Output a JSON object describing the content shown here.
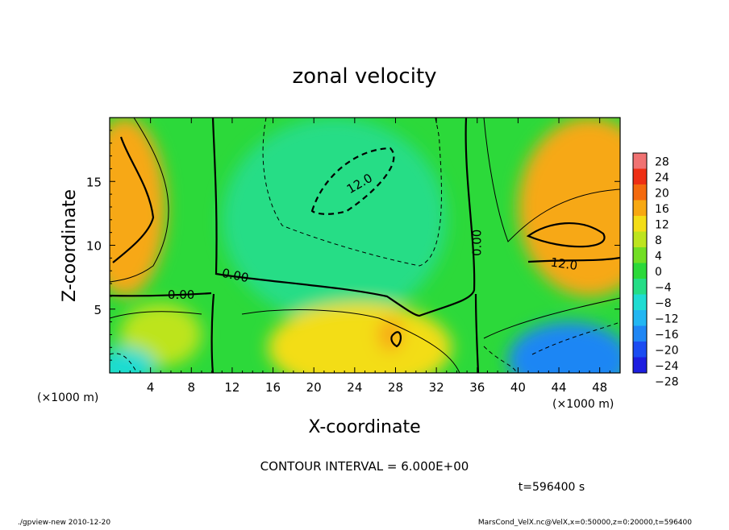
{
  "chart_data": {
    "type": "heatmap",
    "title": "zonal velocity",
    "xlabel": "X-coordinate",
    "ylabel": "Z-coordinate",
    "x_unit": "(×1000 m)",
    "y_unit": "(×1000 m)",
    "xlim": [
      0,
      50
    ],
    "ylim": [
      0,
      20
    ],
    "x_ticks": [
      4,
      8,
      12,
      16,
      20,
      24,
      28,
      32,
      36,
      40,
      44,
      48
    ],
    "y_ticks": [
      5,
      10,
      15
    ],
    "contour_interval_text": "CONTOUR INTERVAL = 6.000E+00",
    "time_text": "t=596400 s",
    "colorbar": {
      "levels": [
        28,
        24,
        20,
        16,
        12,
        8,
        4,
        0,
        -4,
        -8,
        -12,
        -16,
        -20,
        -24,
        -28
      ],
      "label_text": [
        "28",
        "24",
        "20",
        "16",
        "12",
        "8",
        "4",
        "0",
        "−4",
        "−8",
        "−12",
        "−16",
        "−20",
        "−24",
        "−28"
      ]
    },
    "contour_labels": [
      {
        "text": "12.0",
        "x": 24.5,
        "z": 14.8,
        "angle": -30
      },
      {
        "text": "0.00",
        "x": 36.0,
        "z": 10.2,
        "angle": -90
      },
      {
        "text": "12.0",
        "x": 44.5,
        "z": 8.5,
        "angle": 8
      },
      {
        "text": "0.00",
        "x": 12.3,
        "z": 7.6,
        "angle": 12
      },
      {
        "text": "0.00",
        "x": 7.0,
        "z": 6.1,
        "angle": 0
      }
    ],
    "field_blobs": [
      {
        "x": 1.5,
        "z": 13.0,
        "rx": 4,
        "rz": 7,
        "value": 14
      },
      {
        "x": 23.0,
        "z": 15.0,
        "rx": 5.5,
        "rz": 3.5,
        "value": -11
      },
      {
        "x": 22.0,
        "z": 12.0,
        "rx": 11,
        "rz": 8,
        "value": -4
      },
      {
        "x": 45.5,
        "z": 10.8,
        "rx": 4,
        "rz": 1.8,
        "value": 20
      },
      {
        "x": 47.0,
        "z": 13.0,
        "rx": 7,
        "rz": 7,
        "value": 14
      },
      {
        "x": 45.0,
        "z": 1.0,
        "rx": 6,
        "rz": 3,
        "value": -16
      },
      {
        "x": 24.5,
        "z": 2.0,
        "rx": 9,
        "rz": 3.5,
        "value": 9
      },
      {
        "x": 27.5,
        "z": 3.0,
        "rx": 1.2,
        "rz": 1.3,
        "value": 13
      },
      {
        "x": 5.0,
        "z": 3.0,
        "rx": 4,
        "rz": 2.5,
        "value": 7
      },
      {
        "x": 1.5,
        "z": 0.5,
        "rx": 3,
        "rz": 1.5,
        "value": -8
      }
    ]
  },
  "footer": {
    "left": "./gpview-new   2010-12-20",
    "right": "MarsCond_VelX.nc@VelX,x=0:50000,z=0:20000,t=596400"
  }
}
